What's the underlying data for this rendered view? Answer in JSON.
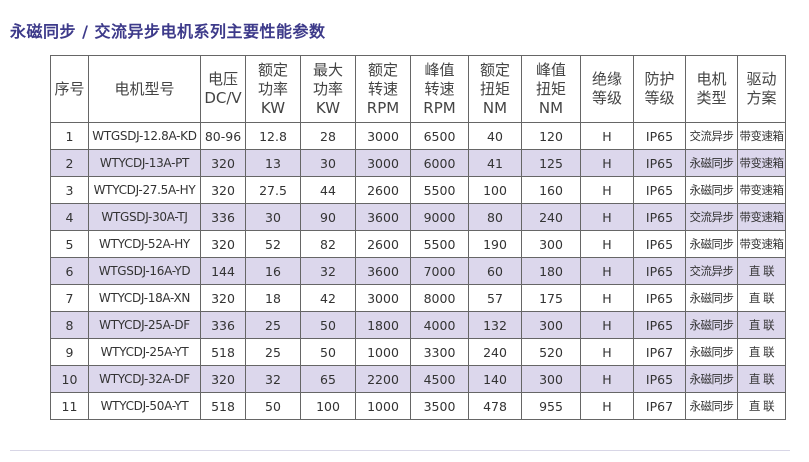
{
  "title": "永磁同步 / 交流异步电机系列主要性能参数",
  "table": {
    "header": [
      [
        "序号"
      ],
      [
        "电机型号"
      ],
      [
        "电压",
        "DC/V"
      ],
      [
        "额定",
        "功率",
        "KW"
      ],
      [
        "最大",
        "功率",
        "KW"
      ],
      [
        "额定",
        "转速",
        "RPM"
      ],
      [
        "峰值",
        "转速",
        "RPM"
      ],
      [
        "额定",
        "扭矩",
        "NM"
      ],
      [
        "峰值",
        "扭矩",
        "NM"
      ],
      [
        "绝缘",
        "等级"
      ],
      [
        "防护",
        "等级"
      ],
      [
        "电机",
        "类型"
      ],
      [
        "驱动",
        "方案"
      ]
    ],
    "rows": [
      [
        "1",
        "WTGSDJ-12.8A-KD",
        "80-96",
        "12.8",
        "28",
        "3000",
        "6500",
        "40",
        "120",
        "H",
        "IP65",
        "交流异步",
        "带变速箱"
      ],
      [
        "2",
        "WTYCDJ-13A-PT",
        "320",
        "13",
        "30",
        "3000",
        "6000",
        "41",
        "125",
        "H",
        "IP65",
        "永磁同步",
        "带变速箱"
      ],
      [
        "3",
        "WTYCDJ-27.5A-HY",
        "320",
        "27.5",
        "44",
        "2600",
        "5500",
        "100",
        "160",
        "H",
        "IP65",
        "永磁同步",
        "带变速箱"
      ],
      [
        "4",
        "WTGSDJ-30A-TJ",
        "336",
        "30",
        "90",
        "3600",
        "9000",
        "80",
        "240",
        "H",
        "IP65",
        "交流异步",
        "带变速箱"
      ],
      [
        "5",
        "WTYCDJ-52A-HY",
        "320",
        "52",
        "82",
        "2600",
        "5500",
        "190",
        "300",
        "H",
        "IP65",
        "永磁同步",
        "带变速箱"
      ],
      [
        "6",
        "WTGSDJ-16A-YD",
        "144",
        "16",
        "32",
        "3600",
        "7000",
        "60",
        "180",
        "H",
        "IP65",
        "交流异步",
        "直 联"
      ],
      [
        "7",
        "WTYCDJ-18A-XN",
        "320",
        "18",
        "42",
        "3000",
        "8000",
        "57",
        "175",
        "H",
        "IP65",
        "永磁同步",
        "直 联"
      ],
      [
        "8",
        "WTYCDJ-25A-DF",
        "336",
        "25",
        "50",
        "1800",
        "4000",
        "132",
        "300",
        "H",
        "IP65",
        "永磁同步",
        "直 联"
      ],
      [
        "9",
        "WTYCDJ-25A-YT",
        "518",
        "25",
        "50",
        "1000",
        "3300",
        "240",
        "520",
        "H",
        "IP67",
        "永磁同步",
        "直 联"
      ],
      [
        "10",
        "WTYCDJ-32A-DF",
        "320",
        "32",
        "65",
        "2200",
        "4500",
        "140",
        "300",
        "H",
        "IP65",
        "永磁同步",
        "直 联"
      ],
      [
        "11",
        "WTYCDJ-50A-YT",
        "518",
        "50",
        "100",
        "1000",
        "3500",
        "478",
        "955",
        "H",
        "IP67",
        "永磁同步",
        "直 联"
      ]
    ]
  }
}
